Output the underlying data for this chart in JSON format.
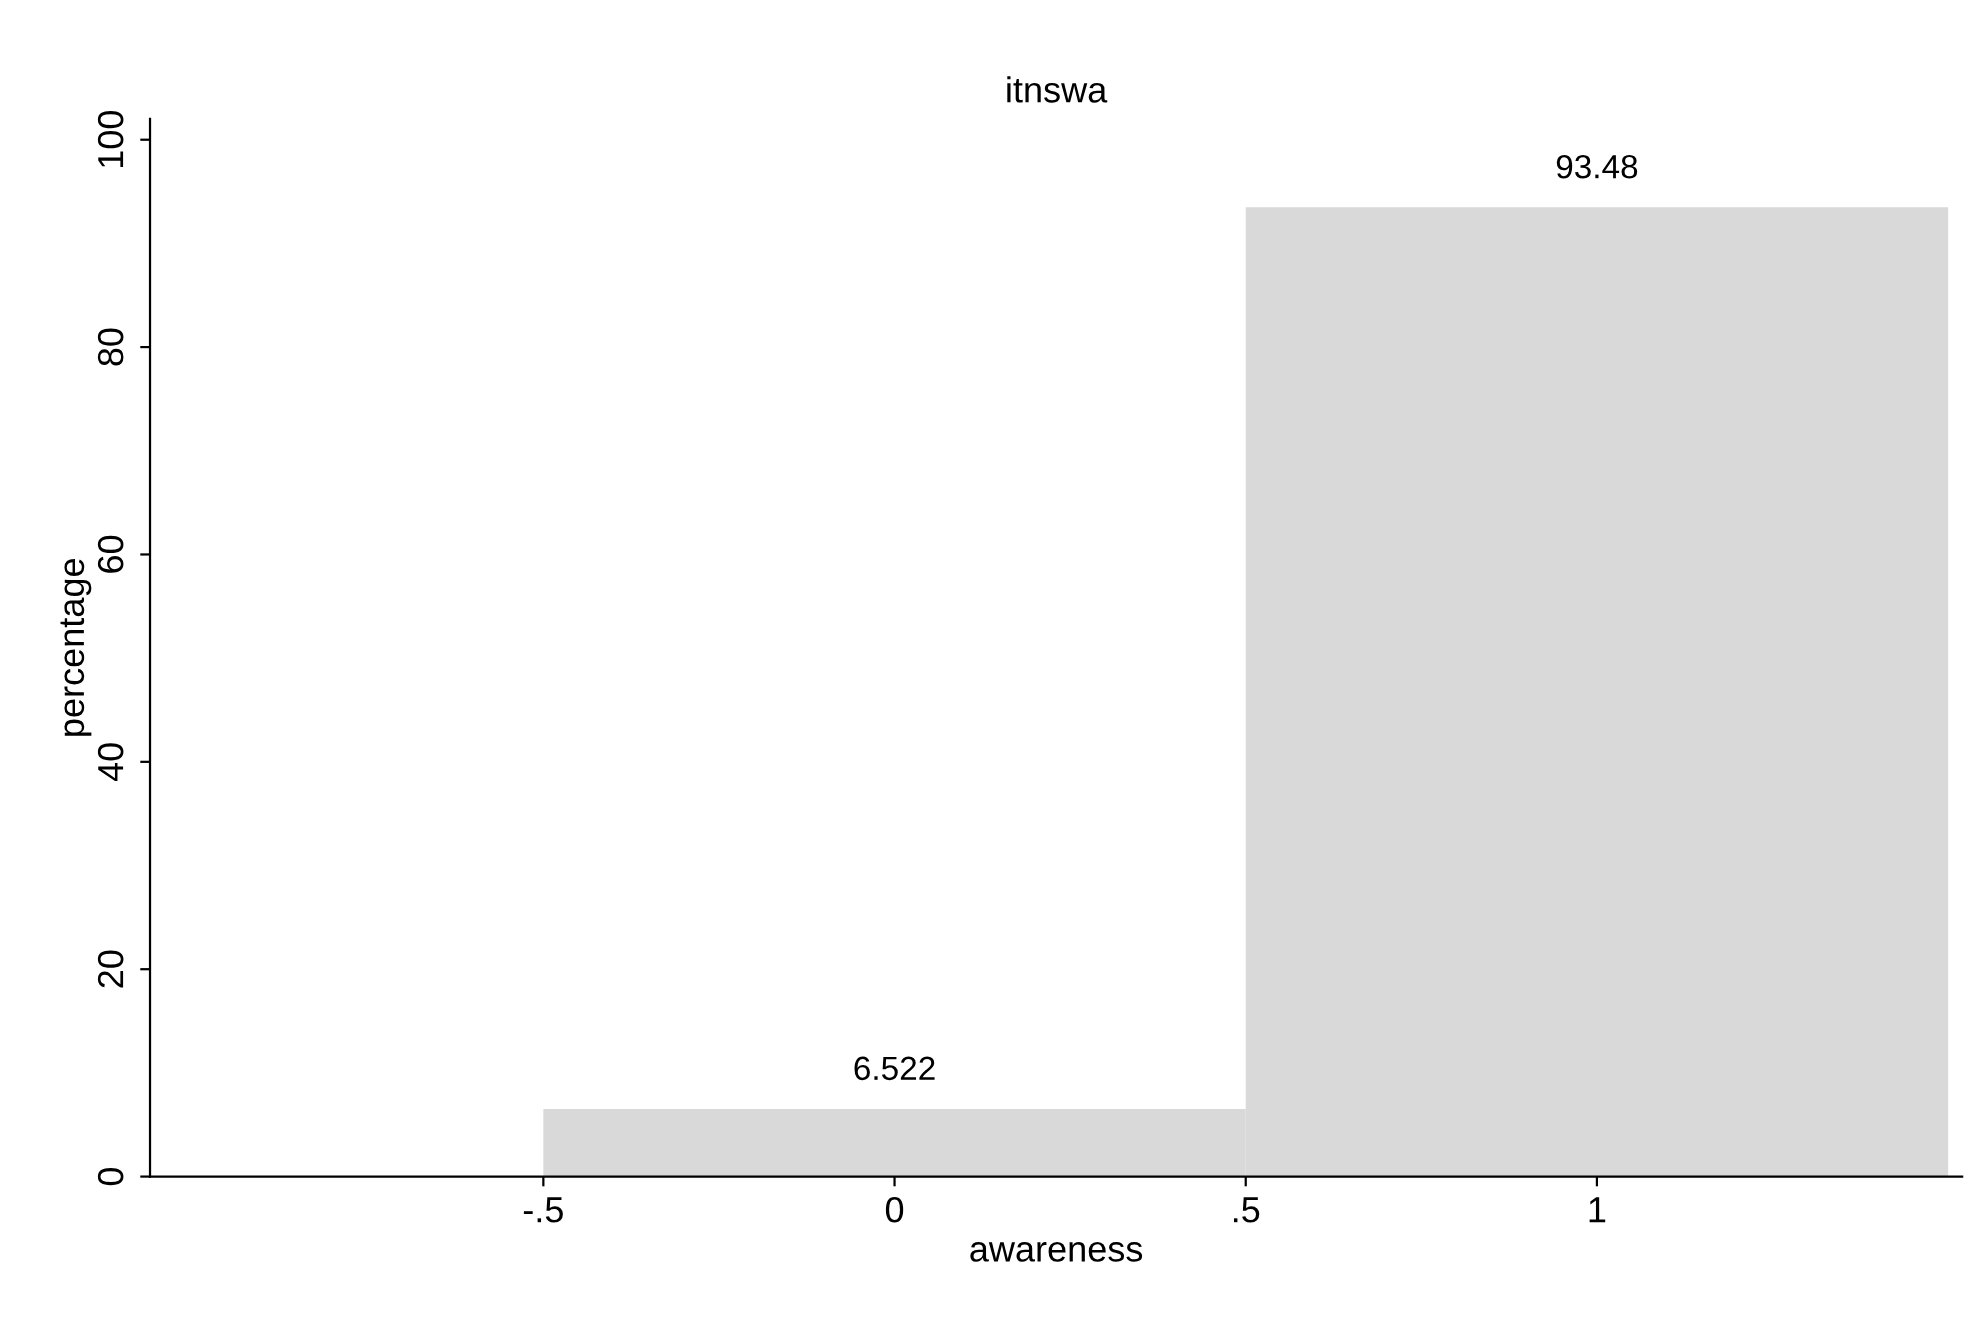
{
  "chart_data": {
    "type": "histogram",
    "title": "itnswa",
    "xlabel": "awareness",
    "ylabel": "percentage",
    "bins": [
      -0.5,
      0.5,
      1.5
    ],
    "values": [
      6.522,
      93.48
    ],
    "color": "#d9d9d9",
    "data_labels": true,
    "xlim": [
      -1.06,
      1.52
    ],
    "xticks": [
      {
        "value": -0.5,
        "label": "-.5"
      },
      0,
      {
        "value": 0.5,
        "label": ".5"
      },
      1
    ],
    "ylim": [
      0,
      102
    ],
    "yticks": [
      0,
      20,
      40,
      60,
      80,
      100
    ],
    "grid": false
  }
}
